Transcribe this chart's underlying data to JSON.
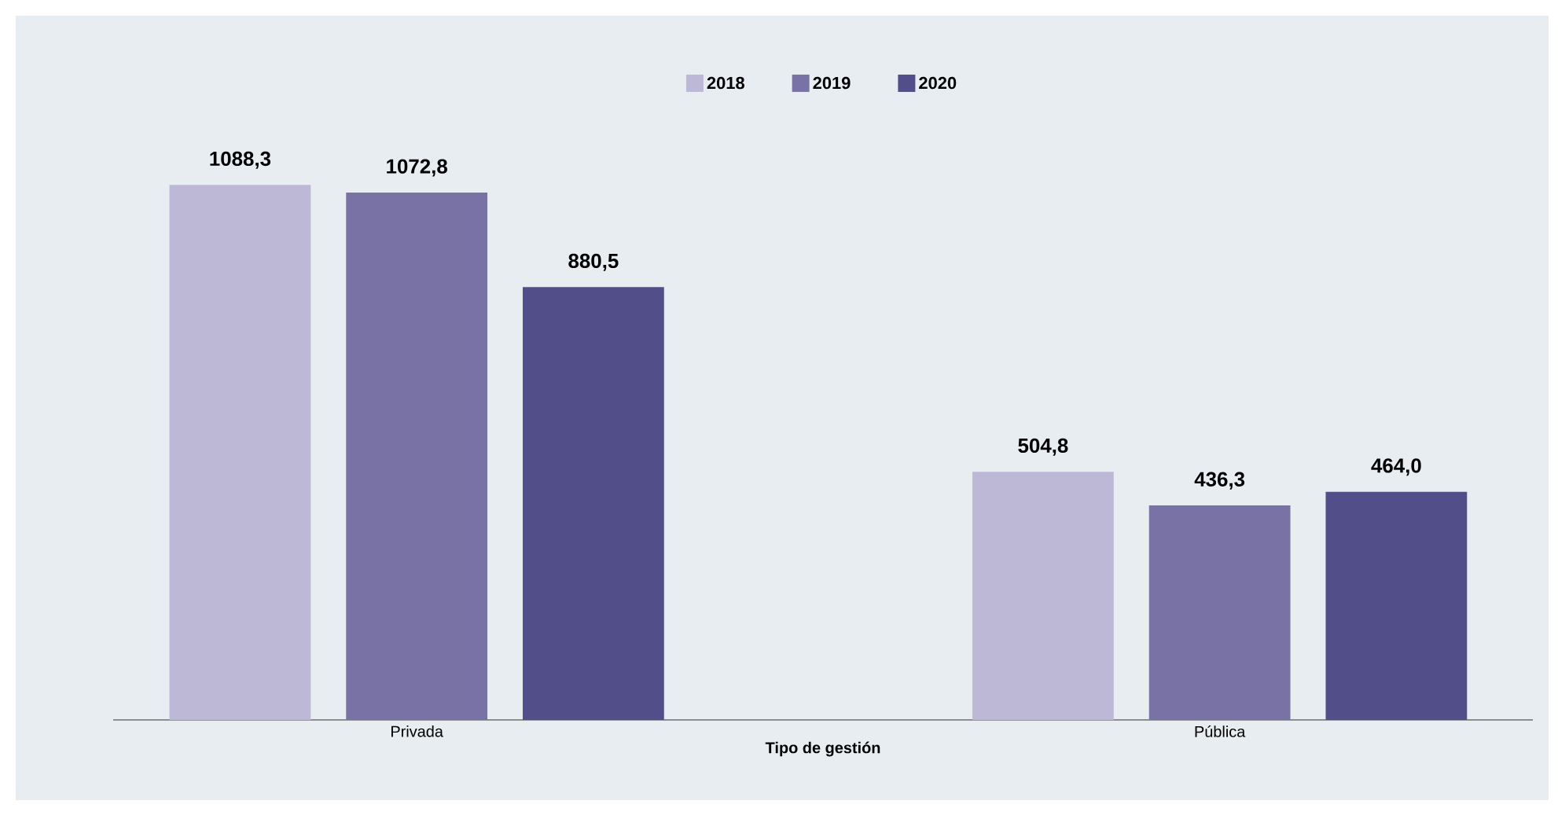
{
  "chart_data": {
    "type": "bar",
    "xlabel": "Tipo de gestión",
    "categories": [
      "Privada",
      "Pública"
    ],
    "series": [
      {
        "name": "2018",
        "color": "#bdb8d6",
        "values": [
          1088.3,
          504.8
        ],
        "value_labels": [
          "1088,3",
          "504,8"
        ]
      },
      {
        "name": "2019",
        "color": "#7873a4",
        "values": [
          1072.8,
          436.3
        ],
        "value_labels": [
          "1072,8",
          "436,3"
        ]
      },
      {
        "name": "2020",
        "color": "#514e89",
        "values": [
          880.5,
          464.0
        ],
        "value_labels": [
          "880,5",
          "464,0"
        ]
      }
    ],
    "legend": "top"
  }
}
